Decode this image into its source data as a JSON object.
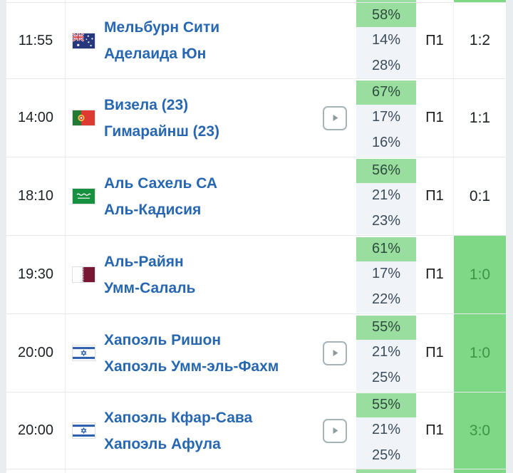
{
  "table": {
    "name": "football-predictions-table",
    "columns": {
      "time": "",
      "match": "",
      "probabilities": "",
      "prediction": "",
      "score": ""
    },
    "rows": [
      {
        "time": "11:55",
        "flag": "australia",
        "home": "Мельбурн Сити",
        "away": "Аделаида Юн",
        "has_video": false,
        "probabilities": [
          "58%",
          "14%",
          "28%"
        ],
        "prediction": "П1",
        "score": "1:2",
        "score_highlight": false
      },
      {
        "time": "14:00",
        "flag": "portugal",
        "home": "Визела (23)",
        "away": "Гимарайнш (23)",
        "has_video": true,
        "probabilities": [
          "67%",
          "17%",
          "16%"
        ],
        "prediction": "П1",
        "score": "1:1",
        "score_highlight": false
      },
      {
        "time": "18:10",
        "flag": "saudi-arabia",
        "home": "Аль Сахель СА",
        "away": "Аль-Кадисия",
        "has_video": false,
        "probabilities": [
          "56%",
          "21%",
          "23%"
        ],
        "prediction": "П1",
        "score": "0:1",
        "score_highlight": false
      },
      {
        "time": "19:30",
        "flag": "qatar",
        "home": "Аль-Райян",
        "away": "Умм-Салаль",
        "has_video": false,
        "probabilities": [
          "61%",
          "17%",
          "22%"
        ],
        "prediction": "П1",
        "score": "1:0",
        "score_highlight": true
      },
      {
        "time": "20:00",
        "flag": "israel",
        "home": "Хапоэль Ришон",
        "away": "Хапоэль Умм-эль-Фахм",
        "has_video": true,
        "probabilities": [
          "55%",
          "21%",
          "25%"
        ],
        "prediction": "П1",
        "score": "1:0",
        "score_highlight": true
      },
      {
        "time": "20:00",
        "flag": "israel",
        "home": "Хапоэль Кфар-Сава",
        "away": "Хапоэль Афула",
        "has_video": true,
        "probabilities": [
          "55%",
          "21%",
          "25%"
        ],
        "prediction": "П1",
        "score": "3:0",
        "score_highlight": true
      }
    ]
  },
  "colors": {
    "probability_highlight": "#9ade9f",
    "score_highlight": "#7ed886",
    "score_highlight_text": "#3f9347",
    "probability_cell_bg": "#f0f4f9",
    "team_link": "#2767b1",
    "page_bg": "#e9edf0"
  },
  "icons": {
    "video_button": "play"
  }
}
